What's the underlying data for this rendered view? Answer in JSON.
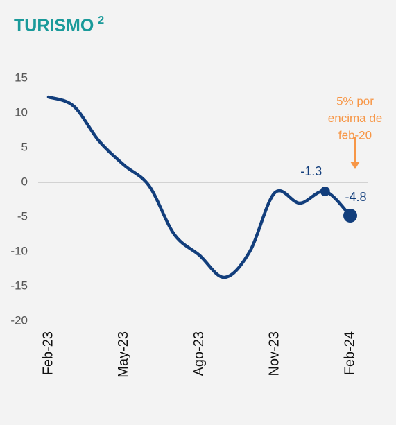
{
  "chart_data": {
    "type": "line",
    "title": "TURISMO",
    "title_superscript": "2",
    "categories": [
      "Feb-23",
      null,
      null,
      "May-23",
      null,
      null,
      "Ago-23",
      null,
      null,
      "Nov-23",
      null,
      null,
      "Feb-24"
    ],
    "values": [
      12.3,
      11,
      6,
      2.5,
      -0.5,
      -7.5,
      -10.5,
      -13.7,
      -10,
      -1.5,
      -3,
      -1.3,
      -4.8
    ],
    "color": "#123e7c",
    "labeled_points": [
      11,
      12
    ],
    "ylim": [
      -20,
      15
    ],
    "yticks": [
      15,
      10,
      5,
      0,
      -5,
      -10,
      -15,
      -20
    ],
    "zero_line": true,
    "annotation": {
      "lines": [
        "5% por",
        "encima de",
        "feb-20"
      ],
      "color": "#f79646"
    }
  }
}
